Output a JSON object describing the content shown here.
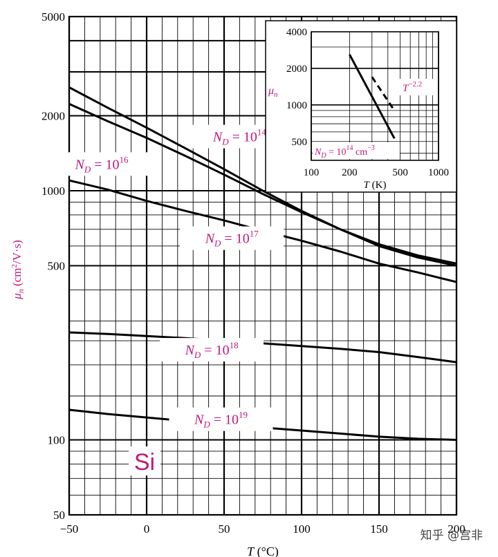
{
  "chart_data": [
    {
      "type": "line",
      "xlabel": "T (°C)",
      "ylabel": "μn (cm²/V·s)",
      "xlim": [
        -50,
        200
      ],
      "ylim": [
        50,
        5000
      ],
      "yscale": "log",
      "grid": true,
      "x_ticks": [
        "−50",
        "0",
        "50",
        "100",
        "150",
        "200"
      ],
      "y_ticks": [
        "5000",
        "2000",
        "1000",
        "500",
        "100",
        "50"
      ],
      "material_label": "Si",
      "series": [
        {
          "name": "N_D = 10^14",
          "label_main": "N",
          "label_sub": "D",
          "label_eq": " = 10",
          "label_exp": "14",
          "x": [
            -50,
            -25,
            0,
            25,
            50,
            75,
            100,
            125,
            150,
            175,
            200
          ],
          "values": [
            2600,
            2150,
            1790,
            1480,
            1220,
            1000,
            830,
            700,
            600,
            540,
            500
          ]
        },
        {
          "name": "N_D = 10^16",
          "label_main": "N",
          "label_sub": "D",
          "label_eq": " = 10",
          "label_exp": "16",
          "x": [
            -50,
            -25,
            0,
            25,
            50,
            75,
            100,
            125,
            150,
            175,
            200
          ],
          "values": [
            2230,
            1900,
            1630,
            1380,
            1160,
            970,
            820,
            700,
            610,
            550,
            510
          ]
        },
        {
          "name": "N_D = 10^17",
          "label_main": "N",
          "label_sub": "D",
          "label_eq": " = 10",
          "label_exp": "17",
          "x": [
            -50,
            -25,
            0,
            25,
            50,
            75,
            100,
            125,
            150,
            175,
            200
          ],
          "values": [
            1100,
            1010,
            910,
            830,
            760,
            690,
            630,
            570,
            510,
            470,
            430
          ]
        },
        {
          "name": "N_D = 10^18",
          "label_main": "N",
          "label_sub": "D",
          "label_eq": " = 10",
          "label_exp": "18",
          "x": [
            -50,
            -25,
            0,
            25,
            50,
            75,
            100,
            125,
            150,
            175,
            200
          ],
          "values": [
            270,
            266,
            261,
            256,
            250,
            244,
            238,
            232,
            225,
            215,
            205
          ]
        },
        {
          "name": "N_D = 10^19",
          "label_main": "N",
          "label_sub": "D",
          "label_eq": " = 10",
          "label_exp": "19",
          "x": [
            -50,
            -25,
            0,
            25,
            50,
            75,
            100,
            125,
            150,
            175,
            200
          ],
          "values": [
            132,
            127,
            123,
            119,
            115,
            112,
            109,
            106,
            103,
            101,
            100
          ]
        }
      ]
    },
    {
      "type": "line",
      "xlabel": "T (K)",
      "ylabel": "μn",
      "xscale": "log",
      "yscale": "log",
      "xlim": [
        100,
        1000
      ],
      "ylim": [
        350,
        4000
      ],
      "x_ticks": [
        "100",
        "200",
        "500",
        "1000"
      ],
      "y_ticks": [
        "4000",
        "2000",
        "1000",
        "500"
      ],
      "grid": true,
      "annotation": "T−2.2",
      "annotation_main": "T",
      "annotation_exp": "−2.2",
      "series_label": "N_D = 10^14 cm^−3",
      "series_label_main": "N",
      "series_label_sub": "D",
      "series_label_eq": " = 10",
      "series_label_exp": "14",
      "series_label_unit": " cm",
      "series_label_unit_exp": "−3",
      "series": [
        {
          "x": [
            200,
            450
          ],
          "values": [
            2600,
            530
          ],
          "style": "solid"
        },
        {
          "x": [
            300,
            450
          ],
          "values": [
            1700,
            900
          ],
          "style": "dashed"
        }
      ]
    }
  ],
  "watermark": "知乎 @宫非"
}
